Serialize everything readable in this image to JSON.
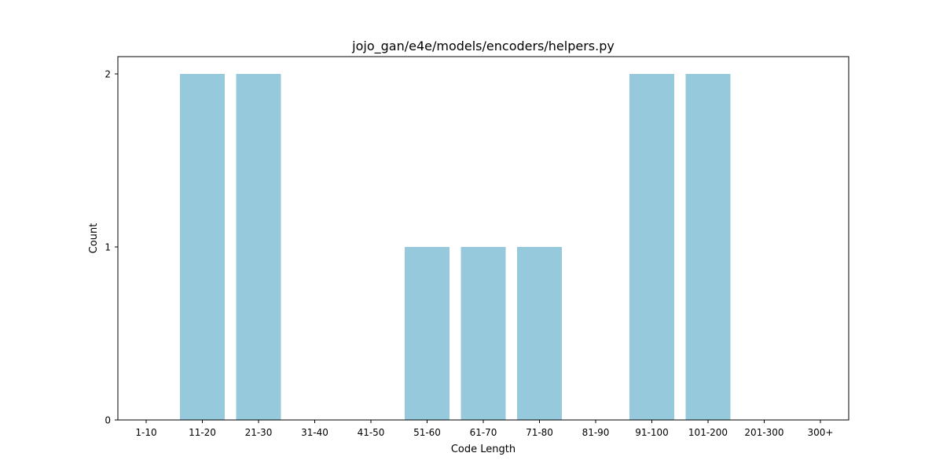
{
  "chart_data": {
    "type": "bar",
    "title": "jojo_gan/e4e/models/encoders/helpers.py",
    "xlabel": "Code Length",
    "ylabel": "Count",
    "categories": [
      "1-10",
      "11-20",
      "21-30",
      "31-40",
      "41-50",
      "51-60",
      "61-70",
      "71-80",
      "81-90",
      "91-100",
      "101-200",
      "201-300",
      "300+"
    ],
    "values": [
      0,
      2,
      2,
      0,
      0,
      1,
      1,
      1,
      0,
      2,
      2,
      0,
      0
    ],
    "yticks": [
      0,
      1,
      2
    ],
    "ylim": [
      0,
      2.1
    ],
    "bar_color": "#96c9dc",
    "grid": false,
    "legend": false
  }
}
